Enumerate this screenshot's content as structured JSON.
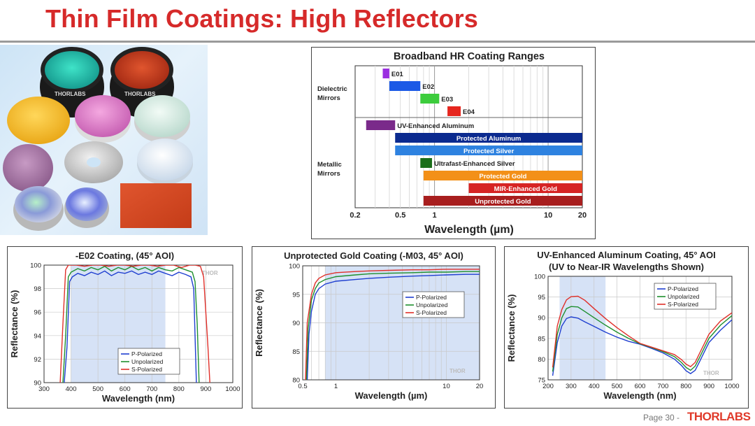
{
  "slide": {
    "title": "Thin Film Coatings: High Reflectors",
    "page_label": "Page 30 -",
    "logo": "THORLABS"
  },
  "colors": {
    "title": "#d62a2a",
    "p": "#1f3fd0",
    "u": "#1f8f2f",
    "s": "#e0302a",
    "band": "#d6e2f6"
  },
  "photo": {
    "mount_brand": "THORLABS"
  },
  "hr_chart": {
    "title": "Broadband HR Coating Ranges",
    "xlabel": "Wavelength (µm)",
    "x_ticks": [
      "0.2",
      "0.5",
      "1",
      "10",
      "20"
    ],
    "group_labels": {
      "dielectric": [
        "Dielectric",
        "Mirrors"
      ],
      "metallic": [
        "Metallic",
        "Mirrors"
      ]
    },
    "dielectric": [
      {
        "label": "E01",
        "start": 0.35,
        "end": 0.4,
        "color": "#9b30e0"
      },
      {
        "label": "E02",
        "start": 0.4,
        "end": 0.75,
        "color": "#1c5ae6"
      },
      {
        "label": "E03",
        "start": 0.75,
        "end": 1.1,
        "color": "#3ccc3c"
      },
      {
        "label": "E04",
        "start": 1.3,
        "end": 1.7,
        "color": "#e6261e"
      }
    ],
    "metallic": [
      {
        "label": "UV-Enhanced Aluminum",
        "start": 0.25,
        "end": 0.45,
        "color": "#7a2a8a",
        "label_pos": "right"
      },
      {
        "label": "Protected Aluminum",
        "start": 0.45,
        "end": 20,
        "color": "#0b2a8f",
        "label_pos": "inside"
      },
      {
        "label": "Protected Silver",
        "start": 0.45,
        "end": 20,
        "color": "#2e82e0",
        "label_pos": "inside"
      },
      {
        "label": "Ultrafast-Enhanced Silver",
        "start": 0.75,
        "end": 0.95,
        "color": "#1a6e1a",
        "label_pos": "right"
      },
      {
        "label": "Protected Gold",
        "start": 0.8,
        "end": 20,
        "color": "#f39018",
        "label_pos": "inside"
      },
      {
        "label": "MIR-Enhanced Gold",
        "start": 2,
        "end": 20,
        "color": "#d62424",
        "label_pos": "inside"
      },
      {
        "label": "Unprotected Gold",
        "start": 0.8,
        "end": 20,
        "color": "#a81e1e",
        "label_pos": "inside"
      }
    ]
  },
  "chart_data": [
    {
      "type": "line",
      "title": "-E02 Coating, (45° AOI)",
      "xlabel": "Wavelength (nm)",
      "ylabel": "Reflectance (%)",
      "xlim": [
        300,
        1000
      ],
      "ylim": [
        90,
        100
      ],
      "x_ticks": [
        300,
        400,
        500,
        600,
        700,
        800,
        900,
        1000
      ],
      "y_ticks": [
        90,
        92,
        94,
        96,
        98,
        100
      ],
      "band": [
        400,
        750
      ],
      "watermark": "THOR",
      "legend": [
        "P-Polarized",
        "Unpolarized",
        "S-Polarized"
      ],
      "series": [
        {
          "name": "P-Polarized",
          "color": "#1f3fd0",
          "x": [
            375,
            385,
            395,
            405,
            425,
            450,
            475,
            500,
            525,
            550,
            575,
            600,
            625,
            650,
            675,
            700,
            725,
            750,
            775,
            800,
            825,
            845,
            855,
            860,
            865
          ],
          "y": [
            90,
            93,
            98.6,
            99.0,
            99.3,
            99.1,
            99.4,
            99.2,
            99.5,
            99.1,
            99.4,
            99.3,
            99.5,
            99.2,
            99.4,
            99.2,
            99.5,
            99.3,
            99.1,
            99.4,
            99.2,
            99.0,
            98.0,
            94,
            90
          ]
        },
        {
          "name": "Unpolarized",
          "color": "#1f8f2f",
          "x": [
            370,
            380,
            390,
            400,
            425,
            450,
            475,
            500,
            525,
            550,
            575,
            600,
            625,
            650,
            675,
            700,
            725,
            750,
            775,
            800,
            825,
            850,
            860,
            868,
            875
          ],
          "y": [
            90,
            94,
            99.0,
            99.4,
            99.7,
            99.5,
            99.8,
            99.6,
            99.9,
            99.5,
            99.8,
            99.6,
            99.9,
            99.6,
            99.8,
            99.5,
            99.8,
            99.6,
            99.5,
            99.8,
            99.6,
            99.4,
            98.6,
            95,
            90
          ]
        },
        {
          "name": "S-Polarized",
          "color": "#e0302a",
          "x": [
            360,
            370,
            380,
            390,
            420,
            450,
            480,
            510,
            540,
            570,
            600,
            630,
            660,
            690,
            720,
            750,
            780,
            810,
            840,
            860,
            880,
            892,
            900,
            908,
            915
          ],
          "y": [
            90,
            95,
            99.6,
            100,
            100,
            99.9,
            100,
            100,
            99.9,
            100,
            100,
            99.9,
            100,
            100,
            99.9,
            100,
            100,
            99.8,
            100,
            100,
            99.9,
            99.0,
            96,
            93,
            90
          ]
        }
      ]
    },
    {
      "type": "line",
      "title": "Unprotected Gold Coating (-M03, 45° AOI)",
      "xlabel": "Wavelength (µm)",
      "ylabel": "Reflectance (%)",
      "xscale": "log",
      "xlim": [
        0.5,
        20
      ],
      "ylim": [
        80,
        100
      ],
      "x_ticks": [
        0.5,
        1,
        10,
        20
      ],
      "y_ticks": [
        80,
        85,
        90,
        95,
        100
      ],
      "band": [
        0.8,
        20
      ],
      "watermark": "THOR",
      "legend": [
        "P-Polarized",
        "Unpolarized",
        "S-Polarized"
      ],
      "series": [
        {
          "name": "P-Polarized",
          "color": "#1f3fd0",
          "x": [
            0.55,
            0.57,
            0.6,
            0.65,
            0.7,
            0.8,
            1,
            1.5,
            2,
            3,
            5,
            7,
            10,
            15,
            20
          ],
          "y": [
            80,
            88,
            92,
            95,
            96,
            96.8,
            97.3,
            97.6,
            97.8,
            98.0,
            98.2,
            98.3,
            98.4,
            98.5,
            98.5
          ]
        },
        {
          "name": "Unpolarized",
          "color": "#1f8f2f",
          "x": [
            0.54,
            0.56,
            0.6,
            0.65,
            0.7,
            0.8,
            1,
            1.5,
            2,
            3,
            5,
            7,
            10,
            15,
            20
          ],
          "y": [
            80,
            89,
            94,
            96,
            97,
            97.6,
            98.1,
            98.4,
            98.6,
            98.7,
            98.8,
            98.9,
            98.9,
            99.0,
            99.0
          ]
        },
        {
          "name": "S-Polarized",
          "color": "#e0302a",
          "x": [
            0.53,
            0.55,
            0.6,
            0.65,
            0.7,
            0.8,
            1,
            1.5,
            2,
            3,
            5,
            7,
            10,
            15,
            20
          ],
          "y": [
            80,
            90,
            95,
            97,
            97.8,
            98.4,
            98.8,
            99.0,
            99.1,
            99.2,
            99.3,
            99.3,
            99.4,
            99.4,
            99.4
          ]
        }
      ]
    },
    {
      "type": "line",
      "title": "UV-Enhanced Aluminum Coating, 45° AOI",
      "subtitle": "(UV to Near-IR Wavelengths Shown)",
      "xlabel": "Wavelength (nm)",
      "ylabel": "Reflectance (%)",
      "xlim": [
        200,
        1000
      ],
      "ylim": [
        75,
        100
      ],
      "x_ticks": [
        200,
        300,
        400,
        500,
        600,
        700,
        800,
        900,
        1000
      ],
      "y_ticks": [
        75,
        80,
        85,
        90,
        95,
        100
      ],
      "band": [
        250,
        450
      ],
      "watermark": "THOR",
      "legend": [
        "P-Polarized",
        "Unpolarized",
        "S-Polarized"
      ],
      "series": [
        {
          "name": "P-Polarized",
          "color": "#1f3fd0",
          "x": [
            220,
            240,
            260,
            280,
            300,
            330,
            360,
            400,
            450,
            500,
            550,
            600,
            650,
            700,
            750,
            780,
            800,
            820,
            840,
            860,
            900,
            950,
            1000
          ],
          "y": [
            76,
            84,
            88,
            89.8,
            90.2,
            89.9,
            89.0,
            87.9,
            86.5,
            85.3,
            84.3,
            83.6,
            82.6,
            81.5,
            80.0,
            78.5,
            77.2,
            76.5,
            77.3,
            79.5,
            84,
            87,
            89.5
          ]
        },
        {
          "name": "Unpolarized",
          "color": "#1f8f2f",
          "x": [
            220,
            240,
            260,
            280,
            300,
            330,
            360,
            400,
            450,
            500,
            550,
            600,
            650,
            700,
            750,
            780,
            800,
            820,
            840,
            860,
            900,
            950,
            1000
          ],
          "y": [
            77,
            86,
            90,
            92.2,
            92.7,
            92.6,
            91.5,
            90.0,
            88.2,
            86.5,
            85.0,
            83.7,
            82.8,
            81.8,
            80.6,
            79.2,
            78.0,
            77.3,
            78.3,
            80.5,
            85,
            88.2,
            90.5
          ]
        },
        {
          "name": "S-Polarized",
          "color": "#e0302a",
          "x": [
            220,
            240,
            260,
            280,
            300,
            330,
            360,
            400,
            450,
            500,
            550,
            600,
            650,
            700,
            750,
            780,
            800,
            820,
            840,
            860,
            900,
            950,
            1000
          ],
          "y": [
            78,
            88,
            92,
            94.3,
            95.1,
            95.2,
            94.2,
            92.2,
            89.8,
            87.6,
            85.6,
            83.8,
            82.9,
            82.0,
            81.1,
            79.9,
            78.8,
            78.2,
            79.2,
            81.5,
            86,
            89.2,
            91.2
          ]
        }
      ]
    }
  ]
}
